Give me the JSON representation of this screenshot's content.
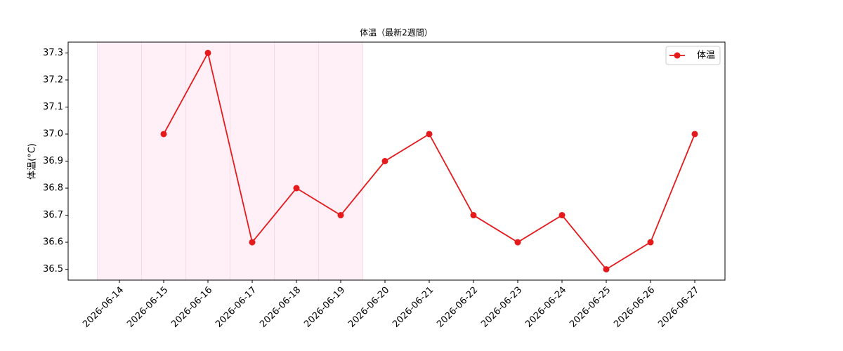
{
  "chart_data": {
    "type": "line",
    "title": "体温（最新2週間）",
    "ylabel": "体温(°C)",
    "categories": [
      "2026-06-14",
      "2026-06-15",
      "2026-06-16",
      "2026-06-17",
      "2026-06-18",
      "2026-06-19",
      "2026-06-20",
      "2026-06-21",
      "2026-06-22",
      "2026-06-23",
      "2026-06-24",
      "2026-06-25",
      "2026-06-26",
      "2026-06-27"
    ],
    "series": [
      {
        "name": "体温",
        "color": "#e41a1c",
        "values": [
          null,
          37.0,
          37.3,
          36.6,
          36.8,
          36.7,
          36.9,
          37.0,
          36.7,
          36.6,
          36.7,
          36.5,
          36.6,
          37.0
        ]
      }
    ],
    "highlight": {
      "categories": [
        "2026-06-14",
        "2026-06-15",
        "2026-06-16",
        "2026-06-17",
        "2026-06-18",
        "2026-06-19"
      ],
      "color": "#fff0f7"
    },
    "ylim": [
      36.46,
      37.34
    ],
    "yticks": [
      36.5,
      36.6,
      36.7,
      36.8,
      36.9,
      {
        "value": 37.0,
        "label": "37.0"
      },
      37.1,
      37.2,
      37.3
    ],
    "legend": "upper right",
    "grid": false
  }
}
